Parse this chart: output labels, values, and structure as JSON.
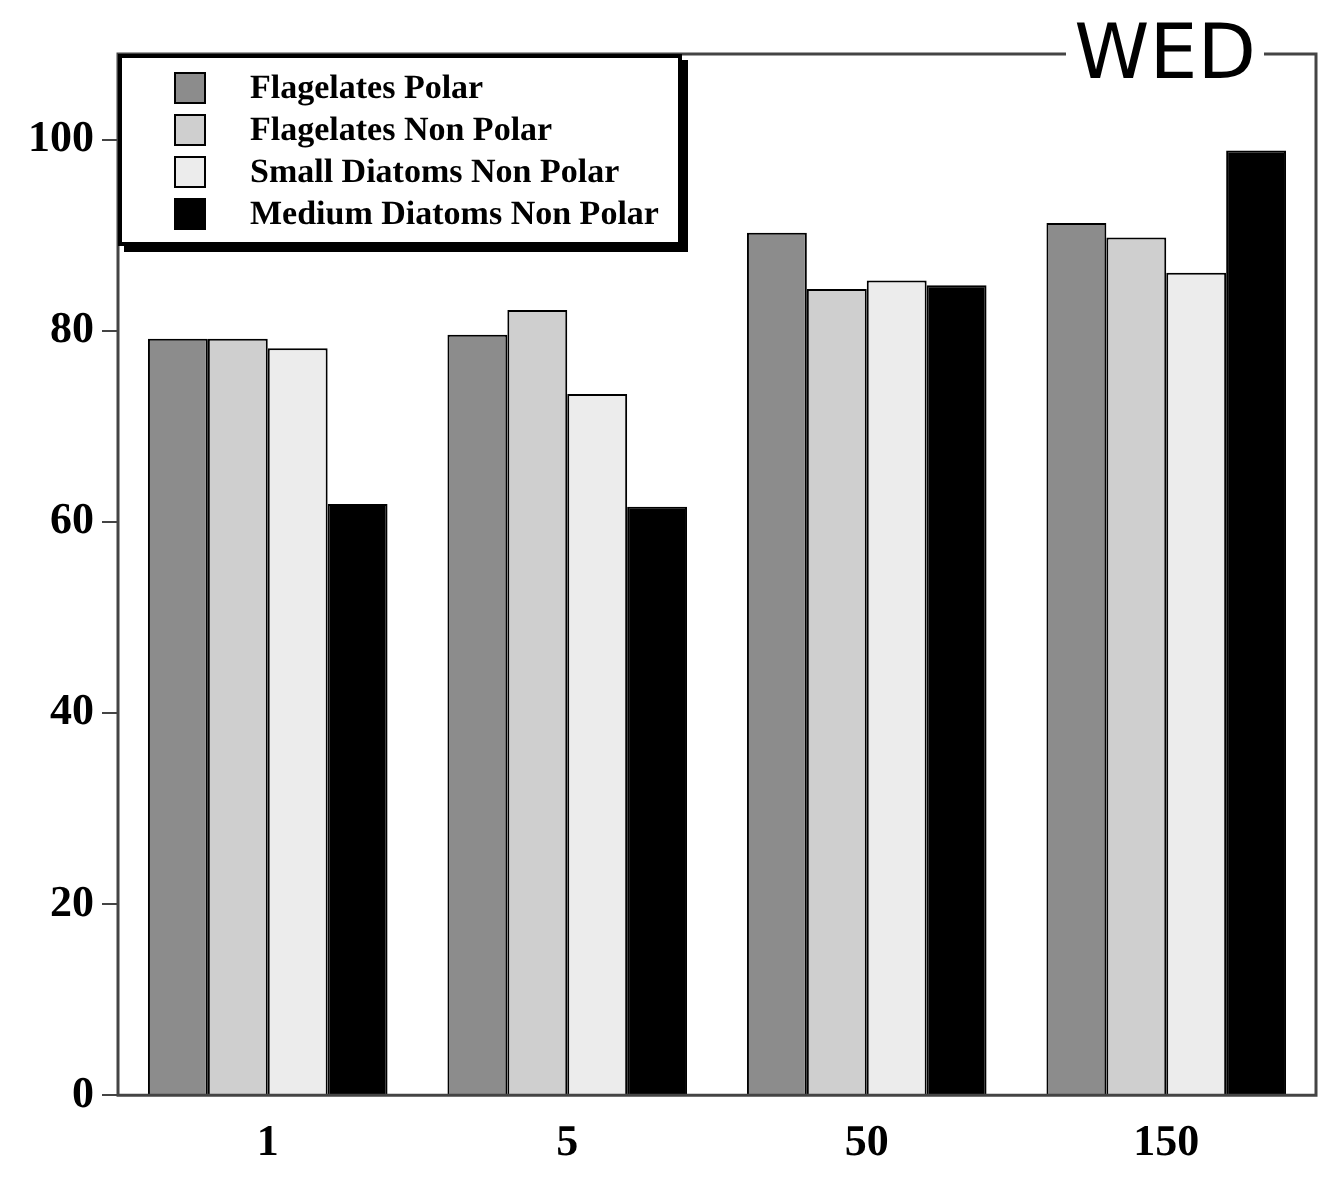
{
  "chart_data": {
    "type": "bar",
    "categories": [
      "1",
      "5",
      "50",
      "150"
    ],
    "series": [
      {
        "name": "Flagelates Polar",
        "color": "#8c8c8c",
        "values": [
          79.2,
          79.6,
          90.3,
          91.3
        ]
      },
      {
        "name": "Flagelates Non Polar",
        "color": "#cfcfcf",
        "values": [
          79.2,
          82.2,
          84.4,
          89.8
        ]
      },
      {
        "name": "Small Diatoms Non Polar",
        "color": "#ececec",
        "values": [
          78.2,
          73.4,
          85.3,
          86.1
        ]
      },
      {
        "name": "Medium Diatoms Non Polar",
        "color": "#000000",
        "values": [
          61.9,
          61.6,
          84.8,
          98.9
        ]
      }
    ],
    "ylim": [
      0,
      109
    ],
    "yticks": [
      0,
      20,
      40,
      60,
      80,
      100
    ],
    "grid": false,
    "legend": "top left",
    "annotations": [
      "WED"
    ]
  }
}
